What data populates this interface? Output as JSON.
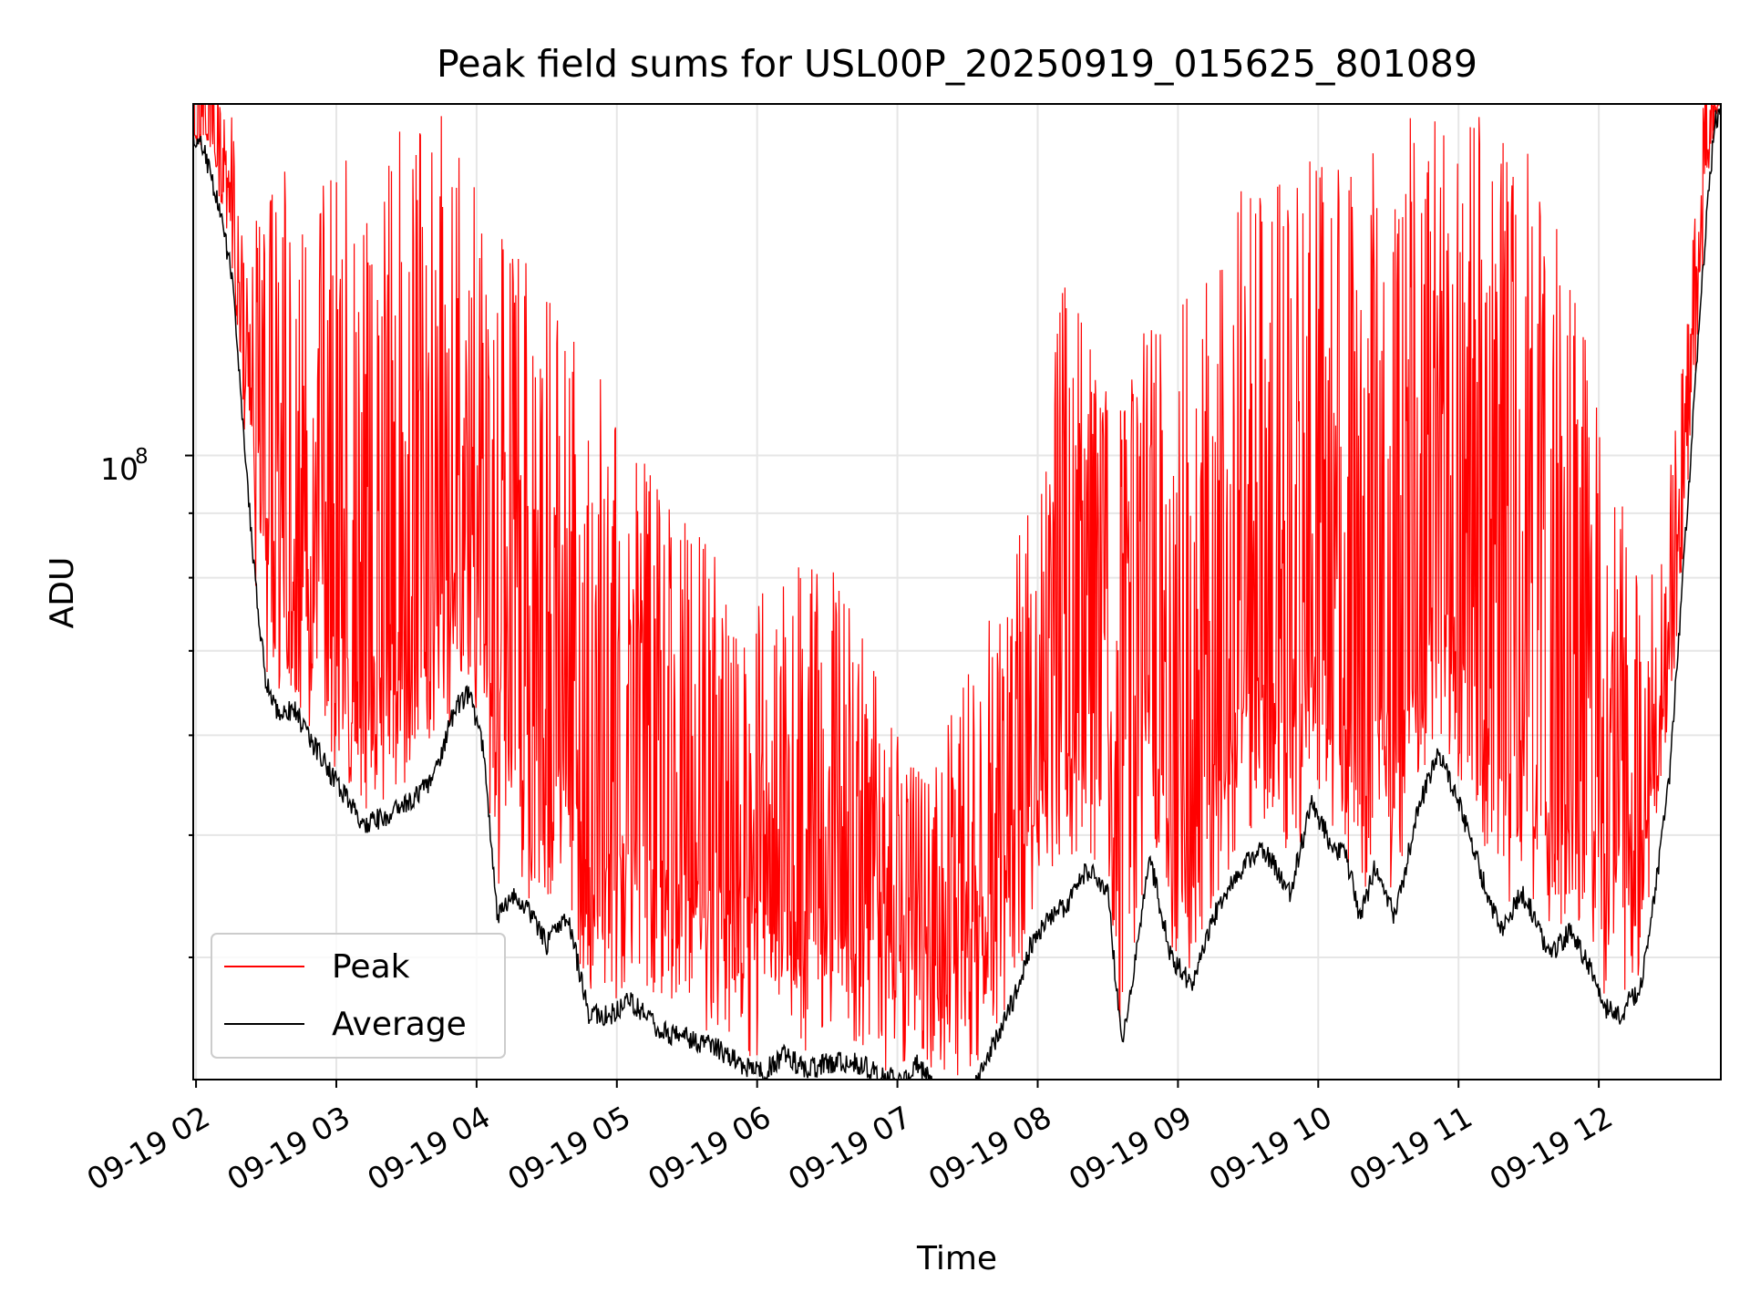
{
  "chart_data": {
    "type": "line",
    "title": "Peak field sums for USL00P_20250919_015625_801089",
    "xlabel": "Time",
    "ylabel": "ADU",
    "y_scale": "log",
    "y_tick_label": "10",
    "y_tick_exponent": "8",
    "x_ticks": [
      "09-19 02",
      "09-19 03",
      "09-19 04",
      "09-19 05",
      "09-19 06",
      "09-19 07",
      "09-19 08",
      "09-19 09",
      "09-19 10",
      "09-19 11",
      "09-19 12"
    ],
    "x_tick_hours": [
      2,
      3,
      4,
      5,
      6,
      7,
      8,
      9,
      10,
      11,
      12
    ],
    "xlim_hours": [
      1.98,
      12.87
    ],
    "ylim": [
      32000000,
      190000000
    ],
    "grid": true,
    "legend_position": "lower-left",
    "series": [
      {
        "name": "Peak",
        "color": "#ff0000",
        "hours": [
          1.98,
          2.1,
          2.2,
          2.3,
          2.45,
          2.6,
          2.8,
          3.0,
          3.2,
          3.4,
          3.6,
          3.8,
          3.9,
          4.0,
          4.2,
          4.4,
          4.6,
          4.8,
          5.0,
          5.2,
          5.4,
          5.6,
          5.8,
          6.0,
          6.2,
          6.4,
          6.6,
          6.8,
          7.0,
          7.2,
          7.4,
          7.6,
          7.8,
          8.0,
          8.2,
          8.4,
          8.6,
          8.8,
          9.0,
          9.2,
          9.4,
          9.6,
          9.8,
          10.0,
          10.2,
          10.4,
          10.6,
          10.8,
          11.0,
          11.2,
          11.4,
          11.6,
          11.8,
          12.0,
          12.2,
          12.4,
          12.6,
          12.7,
          12.8
        ],
        "values": [
          180000000,
          180000000,
          175000000,
          140000000,
          160000000,
          170000000,
          160000000,
          170000000,
          180000000,
          190000000,
          180000000,
          190000000,
          190000000,
          165000000,
          150000000,
          140000000,
          130000000,
          120000000,
          110000000,
          100000000,
          90000000,
          88000000,
          80000000,
          78000000,
          80000000,
          85000000,
          80000000,
          70000000,
          60000000,
          55000000,
          65000000,
          72000000,
          80000000,
          100000000,
          140000000,
          120000000,
          110000000,
          130000000,
          130000000,
          150000000,
          160000000,
          170000000,
          175000000,
          180000000,
          170000000,
          175000000,
          185000000,
          190000000,
          190000000,
          185000000,
          180000000,
          170000000,
          140000000,
          110000000,
          90000000,
          80000000,
          120000000,
          150000000,
          190000000
        ]
      },
      {
        "name": "Average",
        "color": "#000000",
        "hours": [
          1.98,
          2.05,
          2.15,
          2.25,
          2.3,
          2.35,
          2.42,
          2.5,
          2.6,
          2.7,
          2.8,
          3.0,
          3.2,
          3.4,
          3.6,
          3.7,
          3.85,
          3.95,
          4.05,
          4.15,
          4.25,
          4.35,
          4.5,
          4.65,
          4.8,
          4.95,
          5.1,
          5.3,
          5.5,
          5.7,
          5.9,
          6.05,
          6.2,
          6.35,
          6.5,
          6.7,
          6.9,
          7.05,
          7.15,
          7.3,
          7.45,
          7.55,
          7.7,
          7.85,
          7.95,
          8.05,
          8.2,
          8.35,
          8.5,
          8.6,
          8.7,
          8.8,
          8.95,
          9.1,
          9.25,
          9.45,
          9.6,
          9.8,
          9.95,
          10.1,
          10.2,
          10.3,
          10.4,
          10.55,
          10.7,
          10.85,
          10.95,
          11.05,
          11.15,
          11.3,
          11.45,
          11.55,
          11.65,
          11.8,
          11.95,
          12.05,
          12.15,
          12.3,
          12.4,
          12.5,
          12.6,
          12.7,
          12.78,
          12.83
        ],
        "values": [
          180000000,
          175000000,
          160000000,
          140000000,
          120000000,
          100000000,
          80000000,
          66000000,
          62000000,
          63000000,
          60000000,
          55000000,
          51000000,
          52000000,
          54000000,
          56000000,
          63000000,
          65000000,
          58000000,
          43000000,
          45000000,
          44000000,
          41000000,
          43000000,
          36000000,
          36000000,
          37000000,
          35000000,
          34500000,
          34000000,
          32800000,
          32500000,
          33500000,
          32500000,
          33000000,
          33000000,
          32200000,
          32000000,
          33000000,
          31200000,
          31000000,
          31500000,
          34500000,
          37500000,
          41000000,
          42500000,
          44000000,
          47000000,
          45000000,
          34000000,
          40000000,
          48000000,
          40000000,
          38000000,
          43000000,
          47000000,
          49000000,
          45000000,
          53000000,
          49000000,
          48000000,
          43000000,
          47000000,
          43000000,
          52000000,
          58000000,
          55000000,
          51000000,
          47000000,
          42000000,
          45000000,
          43000000,
          40000000,
          42000000,
          39000000,
          36500000,
          36000000,
          38000000,
          45000000,
          55000000,
          80000000,
          120000000,
          160000000,
          185000000
        ]
      }
    ]
  }
}
